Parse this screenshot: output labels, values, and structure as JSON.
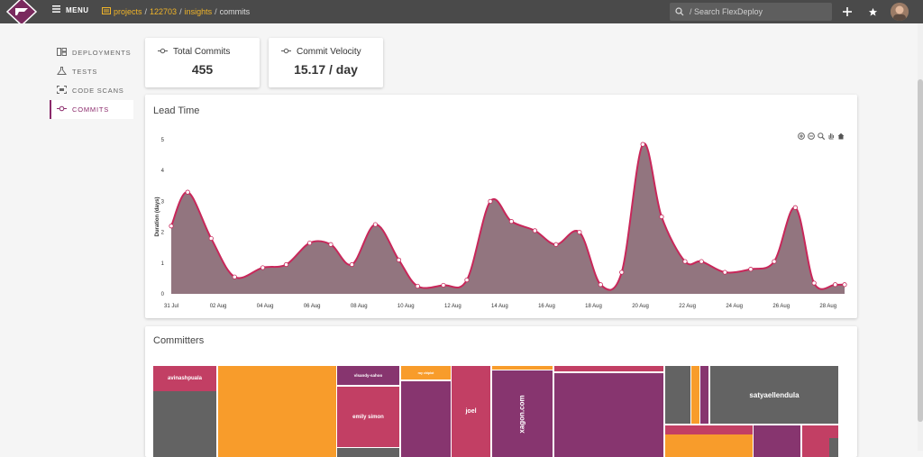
{
  "topbar": {
    "menu_label": "MENU",
    "breadcrumbs": [
      "projects",
      "122703",
      "insights",
      "commits"
    ],
    "search_placeholder": "/ Search FlexDeploy"
  },
  "sidebar": {
    "items": [
      {
        "label": "DEPLOYMENTS",
        "icon": "deployments-icon"
      },
      {
        "label": "TESTS",
        "icon": "flask-icon"
      },
      {
        "label": "CODE SCANS",
        "icon": "code-scan-icon"
      },
      {
        "label": "COMMITS",
        "icon": "commit-icon",
        "active": true
      }
    ]
  },
  "stats": {
    "total_commits_label": "Total Commits",
    "total_commits_value": "455",
    "velocity_label": "Commit Velocity",
    "velocity_value": "15.17 / day"
  },
  "lead_time": {
    "title": "Lead Time"
  },
  "committers": {
    "title": "Committers",
    "tiles": [
      {
        "label": "avinashpuala",
        "color": "#c23f64"
      },
      {
        "label": "",
        "color": "#636363"
      },
      {
        "label": "",
        "color": "#f89c2b"
      },
      {
        "label": "vlsandy-sahoo",
        "color": "#87356f"
      },
      {
        "label": "emily simon",
        "color": "#c23f64"
      },
      {
        "label": "",
        "color": "#636363"
      },
      {
        "label": "ray chiplot",
        "color": "#f89c2b"
      },
      {
        "label": "",
        "color": "#87356f"
      },
      {
        "label": "joel",
        "color": "#c23f64"
      },
      {
        "label": "",
        "color": "#f89c2b"
      },
      {
        "label": "xagon.com",
        "color": "#87356f"
      },
      {
        "label": "",
        "color": "#c23f64"
      },
      {
        "label": "",
        "color": "#87356f"
      },
      {
        "label": "",
        "color": "#636363"
      },
      {
        "label": "",
        "color": "#f89c2b"
      },
      {
        "label": "",
        "color": "#87356f"
      },
      {
        "label": "",
        "color": "#c23f64"
      },
      {
        "label": "satyaellendula",
        "color": "#636363"
      },
      {
        "label": "",
        "color": "#f89c2b"
      },
      {
        "label": "",
        "color": "#87356f"
      },
      {
        "label": "",
        "color": "#c23f64"
      },
      {
        "label": "",
        "color": "#636363"
      }
    ]
  },
  "chart_data": {
    "type": "area",
    "ylabel": "Duration (days)",
    "ylim": [
      0,
      5
    ],
    "yticks": [
      "0",
      "1",
      "2",
      "3",
      "4",
      "5"
    ],
    "xtick_labels": [
      "31 Jul",
      "02 Aug",
      "04 Aug",
      "06 Aug",
      "08 Aug",
      "10 Aug",
      "12 Aug",
      "14 Aug",
      "16 Aug",
      "18 Aug",
      "20 Aug",
      "22 Aug",
      "24 Aug",
      "26 Aug",
      "28 Aug"
    ],
    "series": [
      {
        "x": [
          0,
          0.7,
          1.7,
          2.7,
          3.9,
          4.9,
          5.9,
          6.8,
          7.7,
          8.7,
          9.7,
          10.5,
          11.6,
          12.6,
          13.6,
          14.5,
          15.5,
          16.4,
          17.4,
          18.3,
          19.2,
          20.1,
          20.9,
          21.9,
          22.6,
          23.6,
          24.7,
          25.7,
          26.6,
          27.4,
          28.3,
          28.7
        ],
        "values": [
          2.2,
          3.3,
          1.8,
          0.55,
          0.85,
          0.95,
          1.65,
          1.6,
          0.95,
          2.25,
          1.1,
          0.25,
          0.28,
          0.45,
          3.0,
          2.35,
          2.05,
          1.6,
          2.0,
          0.3,
          0.7,
          4.85,
          2.5,
          1.05,
          1.05,
          0.7,
          0.8,
          1.05,
          2.8,
          0.35,
          0.3,
          0.3
        ]
      }
    ],
    "fill_color": "#8c6e78",
    "line_color": "#c8275a"
  }
}
